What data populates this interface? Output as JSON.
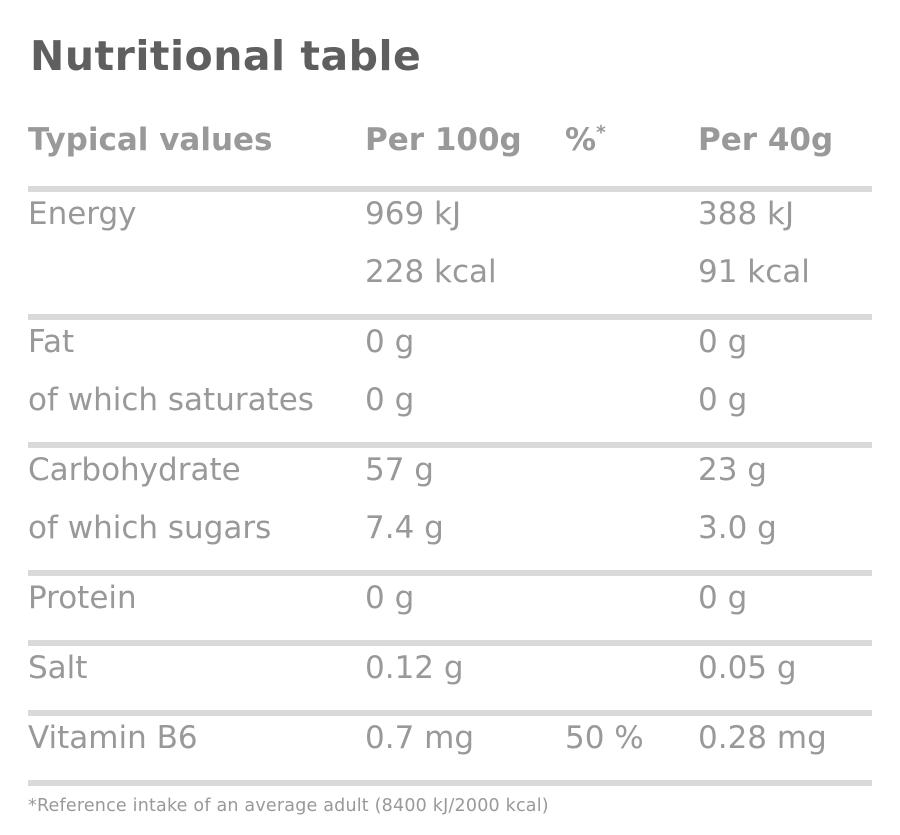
{
  "title": "Nutritional table",
  "colors": {
    "title_text": "#5f5f5f",
    "body_text": "#999999",
    "divider": "#d9d9d9",
    "background": "#ffffff"
  },
  "table": {
    "header": {
      "col1": "Typical values",
      "col2": "Per 100g",
      "col3_symbol": "%",
      "col3_sup": "*",
      "col4": "Per 40g"
    },
    "rows": [
      {
        "label": "Energy",
        "per100": "969 kJ",
        "pct": "",
        "per40": "388 kJ"
      },
      {
        "label": "",
        "per100": "228 kcal",
        "pct": "",
        "per40": "91 kcal"
      },
      {
        "label": "Fat",
        "per100": "0 g",
        "pct": "",
        "per40": "0 g"
      },
      {
        "label": "of which saturates",
        "per100": "0 g",
        "pct": "",
        "per40": "0 g"
      },
      {
        "label": "Carbohydrate",
        "per100": "57 g",
        "pct": "",
        "per40": "23 g"
      },
      {
        "label": "of which sugars",
        "per100": "7.4 g",
        "pct": "",
        "per40": "3.0 g"
      },
      {
        "label": "Protein",
        "per100": "0 g",
        "pct": "",
        "per40": "0 g"
      },
      {
        "label": "Salt",
        "per100": "0.12 g",
        "pct": "",
        "per40": "0.05 g"
      },
      {
        "label": "Vitamin B6",
        "per100": "0.7 mg",
        "pct": "50 %",
        "per40": "0.28 mg"
      }
    ],
    "footnote": "*Reference intake of an average adult (8400 kJ/2000 kcal)"
  }
}
